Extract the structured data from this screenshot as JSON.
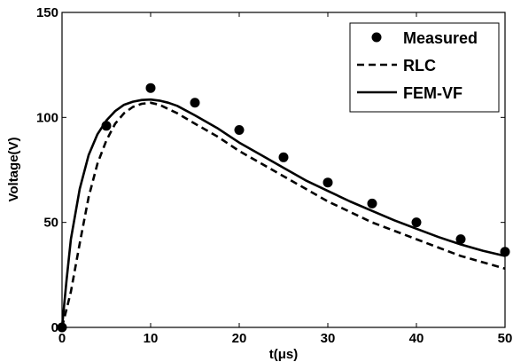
{
  "chart_data": {
    "type": "line",
    "title": "",
    "xlabel": "t(μs)",
    "ylabel": "Voltage(V)",
    "xlim": [
      0,
      50
    ],
    "ylim": [
      0,
      150
    ],
    "x_ticks": [
      "0",
      "10",
      "20",
      "30",
      "40",
      "50"
    ],
    "y_ticks": [
      "0",
      "50",
      "100",
      "150"
    ],
    "grid": false,
    "legend_position": "top-right",
    "series": [
      {
        "name": "Measured",
        "style": "markers",
        "color": "#000000",
        "x": [
          0,
          5,
          10,
          15,
          20,
          25,
          30,
          35,
          40,
          45,
          50
        ],
        "y": [
          0,
          96,
          114,
          107,
          94,
          81,
          69,
          59,
          50,
          42,
          36
        ]
      },
      {
        "name": "RLC",
        "style": "dashed",
        "color": "#000000",
        "x": [
          0,
          1,
          2,
          3,
          4,
          5,
          6,
          7,
          8,
          9,
          10,
          11,
          12,
          13,
          15,
          17.5,
          20,
          22.5,
          25,
          27.5,
          30,
          32.5,
          35,
          37.5,
          40,
          42.5,
          45,
          47.5,
          50
        ],
        "y": [
          0,
          17,
          40,
          62,
          78,
          89,
          97,
          102,
          105,
          106.5,
          107,
          106,
          104,
          102,
          97,
          91,
          84,
          78,
          72,
          66,
          60,
          55,
          50,
          46,
          42,
          38,
          34,
          31,
          28
        ]
      },
      {
        "name": "FEM-VF",
        "style": "solid",
        "color": "#000000",
        "x": [
          0,
          0.5,
          1,
          2,
          3,
          4,
          5,
          6,
          7,
          8,
          9,
          10,
          11,
          12,
          13,
          15,
          17.5,
          20,
          22.5,
          25,
          27.5,
          30,
          32.5,
          35,
          37.5,
          40,
          42.5,
          45,
          47.5,
          50
        ],
        "y": [
          0,
          22,
          42,
          66,
          82,
          92,
          98.5,
          103,
          106,
          107.5,
          108.3,
          108.5,
          108,
          107,
          105.5,
          101,
          95,
          88,
          82,
          76,
          70,
          65,
          60,
          55.5,
          51,
          47,
          43,
          39.5,
          36.5,
          34
        ]
      }
    ]
  }
}
